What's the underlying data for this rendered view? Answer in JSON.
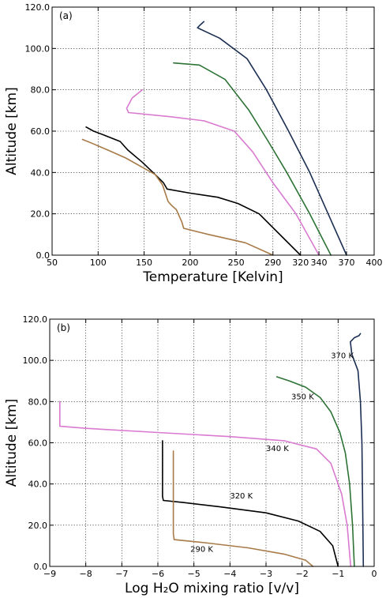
{
  "chart_data": [
    {
      "type": "line",
      "panel_label": "(a)",
      "xlabel": "Temperature [Kelvin]",
      "ylabel": "Altitude [km]",
      "xlim": [
        50,
        400
      ],
      "ylim": [
        0,
        120
      ],
      "x_tick_values": [
        50,
        100,
        150,
        200,
        250,
        290,
        320,
        340,
        370,
        400
      ],
      "x_tick_labels": [
        "50",
        "100",
        "150",
        "200",
        "250",
        "290",
        "320",
        "340",
        "370",
        "400"
      ],
      "y_tick_values": [
        0,
        20,
        40,
        60,
        80,
        100,
        120
      ],
      "y_tick_labels": [
        "0.0",
        "20.0",
        "40.0",
        "60.0",
        "80.0",
        "100.0",
        "120.0"
      ],
      "grid": true,
      "series": [
        {
          "color": "#1c2f52",
          "points": [
            [
              370,
              0
            ],
            [
              350,
              20
            ],
            [
              330,
              40
            ],
            [
              307,
              60
            ],
            [
              283,
              80
            ],
            [
              262,
              95
            ],
            [
              232,
              105
            ],
            [
              208,
              110
            ],
            [
              210,
              111
            ],
            [
              215,
              113
            ]
          ]
        },
        {
          "color": "#2e7336",
          "points": [
            [
              353,
              0
            ],
            [
              330,
              20
            ],
            [
              305,
              40
            ],
            [
              285,
              55
            ],
            [
              264,
              70
            ],
            [
              238,
              85
            ],
            [
              210,
              92
            ],
            [
              182,
              93
            ]
          ]
        },
        {
          "color": "#d97ad0",
          "points": [
            [
              340,
              0
            ],
            [
              315,
              20
            ],
            [
              290,
              35
            ],
            [
              268,
              50
            ],
            [
              248,
              60
            ],
            [
              215,
              65
            ],
            [
              178,
              67
            ],
            [
              133,
              69
            ],
            [
              131,
              71
            ],
            [
              137,
              76
            ],
            [
              148,
              80
            ]
          ]
        },
        {
          "color": "#000000",
          "points": [
            [
              320,
              0
            ],
            [
              275,
              20
            ],
            [
              252,
              25
            ],
            [
              230,
              28
            ],
            [
              200,
              30
            ],
            [
              175,
              32
            ],
            [
              171,
              35
            ],
            [
              162,
              39
            ],
            [
              148,
              45
            ],
            [
              132,
              51
            ],
            [
              124,
              55
            ],
            [
              107,
              58
            ],
            [
              95,
              60
            ],
            [
              87,
              62
            ]
          ]
        },
        {
          "color": "#a87a48",
          "points": [
            [
              290,
              0
            ],
            [
              260,
              6
            ],
            [
              220,
              10
            ],
            [
              193,
              13
            ],
            [
              191,
              16
            ],
            [
              185,
              22
            ],
            [
              180,
              24
            ],
            [
              176,
              26
            ],
            [
              173,
              30
            ],
            [
              170,
              34
            ],
            [
              162,
              39
            ],
            [
              150,
              42
            ],
            [
              130,
              47
            ],
            [
              110,
              51
            ],
            [
              94,
              54
            ],
            [
              83,
              56
            ]
          ]
        }
      ]
    },
    {
      "type": "line",
      "panel_label": "(b)",
      "xlabel": "Log H₂O mixing ratio [v/v]",
      "ylabel": "Altitude [km]",
      "xlim": [
        -9,
        0
      ],
      "ylim": [
        0,
        120
      ],
      "x_tick_values": [
        -9,
        -8,
        -7,
        -6,
        -5,
        -4,
        -3,
        -2,
        -1,
        0
      ],
      "x_tick_labels": [
        "−9",
        "−8",
        "−7",
        "−6",
        "−5",
        "−4",
        "−3",
        "−2",
        "−1",
        "0"
      ],
      "y_tick_values": [
        0,
        20,
        40,
        60,
        80,
        100,
        120
      ],
      "y_tick_labels": [
        "0.0",
        "20.0",
        "40.0",
        "60.0",
        "80.0",
        "100.0",
        "120.0"
      ],
      "grid": true,
      "series": [
        {
          "name": "370 K",
          "color": "#1c2f52",
          "label_at": [
            -1.2,
            101
          ],
          "points": [
            [
              -0.3,
              0
            ],
            [
              -0.32,
              30
            ],
            [
              -0.34,
              60
            ],
            [
              -0.38,
              80
            ],
            [
              -0.45,
              95
            ],
            [
              -0.62,
              103
            ],
            [
              -0.66,
              109
            ],
            [
              -0.55,
              111
            ],
            [
              -0.42,
              112
            ],
            [
              -0.38,
              113
            ]
          ]
        },
        {
          "name": "350 K",
          "color": "#2e7336",
          "label_at": [
            -2.3,
            81
          ],
          "points": [
            [
              -0.55,
              0
            ],
            [
              -0.6,
              20
            ],
            [
              -0.68,
              40
            ],
            [
              -0.8,
              55
            ],
            [
              -0.95,
              65
            ],
            [
              -1.2,
              75
            ],
            [
              -1.5,
              82
            ],
            [
              -1.9,
              87
            ],
            [
              -2.35,
              90
            ],
            [
              -2.7,
              92
            ]
          ]
        },
        {
          "name": "340 K",
          "color": "#d97ad0",
          "label_at": [
            -3.0,
            56
          ],
          "points": [
            [
              -0.65,
              0
            ],
            [
              -0.75,
              20
            ],
            [
              -0.9,
              35
            ],
            [
              -1.2,
              50
            ],
            [
              -1.6,
              57
            ],
            [
              -2.5,
              61
            ],
            [
              -4,
              63
            ],
            [
              -6,
              65
            ],
            [
              -8,
              67
            ],
            [
              -8.72,
              68
            ],
            [
              -8.72,
              80
            ]
          ]
        },
        {
          "name": "320 K",
          "color": "#000000",
          "label_at": [
            -4.0,
            33
          ],
          "points": [
            [
              -1.0,
              0
            ],
            [
              -1.15,
              10
            ],
            [
              -1.5,
              17
            ],
            [
              -2.1,
              22
            ],
            [
              -3.0,
              26
            ],
            [
              -4.3,
              29
            ],
            [
              -5.3,
              31
            ],
            [
              -5.85,
              32
            ],
            [
              -5.87,
              34
            ],
            [
              -5.87,
              61
            ]
          ]
        },
        {
          "name": "290 K",
          "color": "#a87a48",
          "label_at": [
            -5.1,
            7
          ],
          "points": [
            [
              -1.7,
              0
            ],
            [
              -1.9,
              3
            ],
            [
              -2.5,
              6
            ],
            [
              -3.5,
              9
            ],
            [
              -4.7,
              11.5
            ],
            [
              -5.55,
              13
            ],
            [
              -5.57,
              16
            ],
            [
              -5.57,
              56
            ]
          ]
        }
      ]
    }
  ]
}
